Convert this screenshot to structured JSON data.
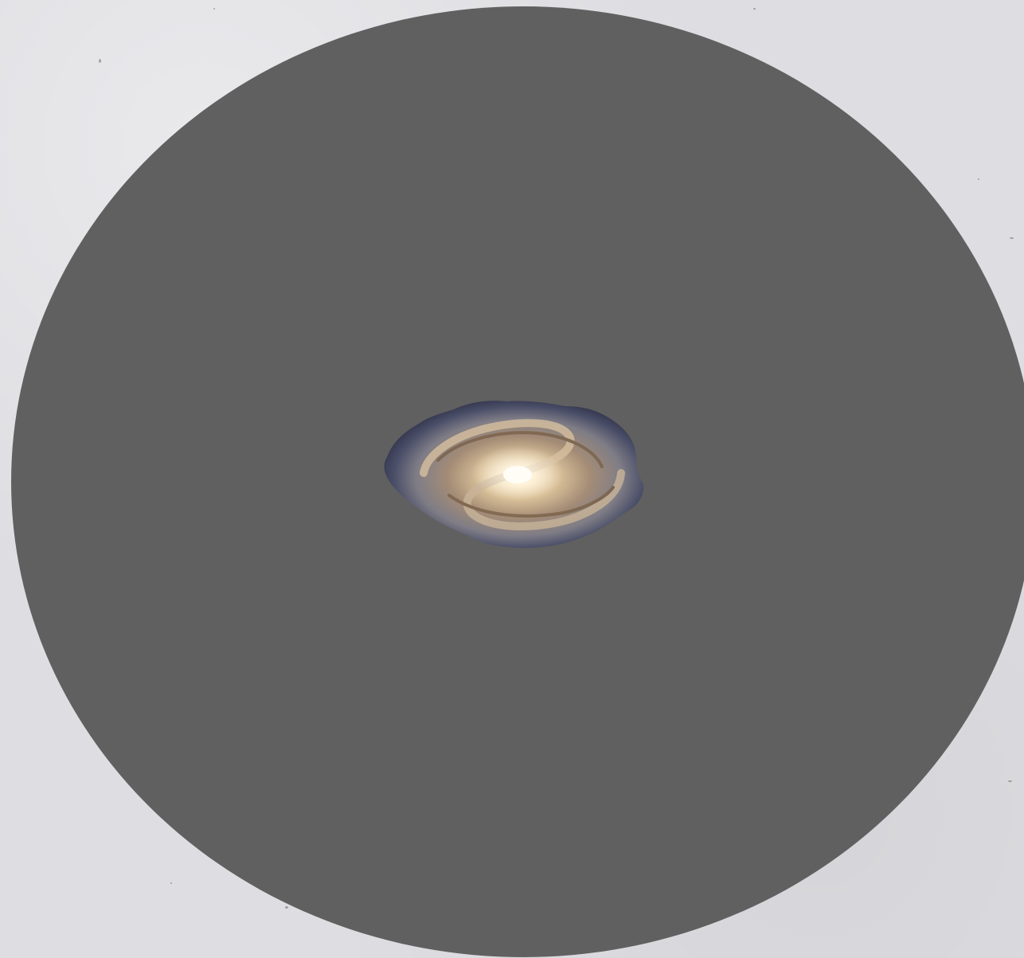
{
  "scene": {
    "subject": "spiral-galaxy",
    "background_color": "#dedee2",
    "disc_color": "#606060",
    "galaxy_core_color": "#fff4dc",
    "galaxy_arm_color": "#b89a74",
    "galaxy_edge_color": "#3a3e58"
  }
}
